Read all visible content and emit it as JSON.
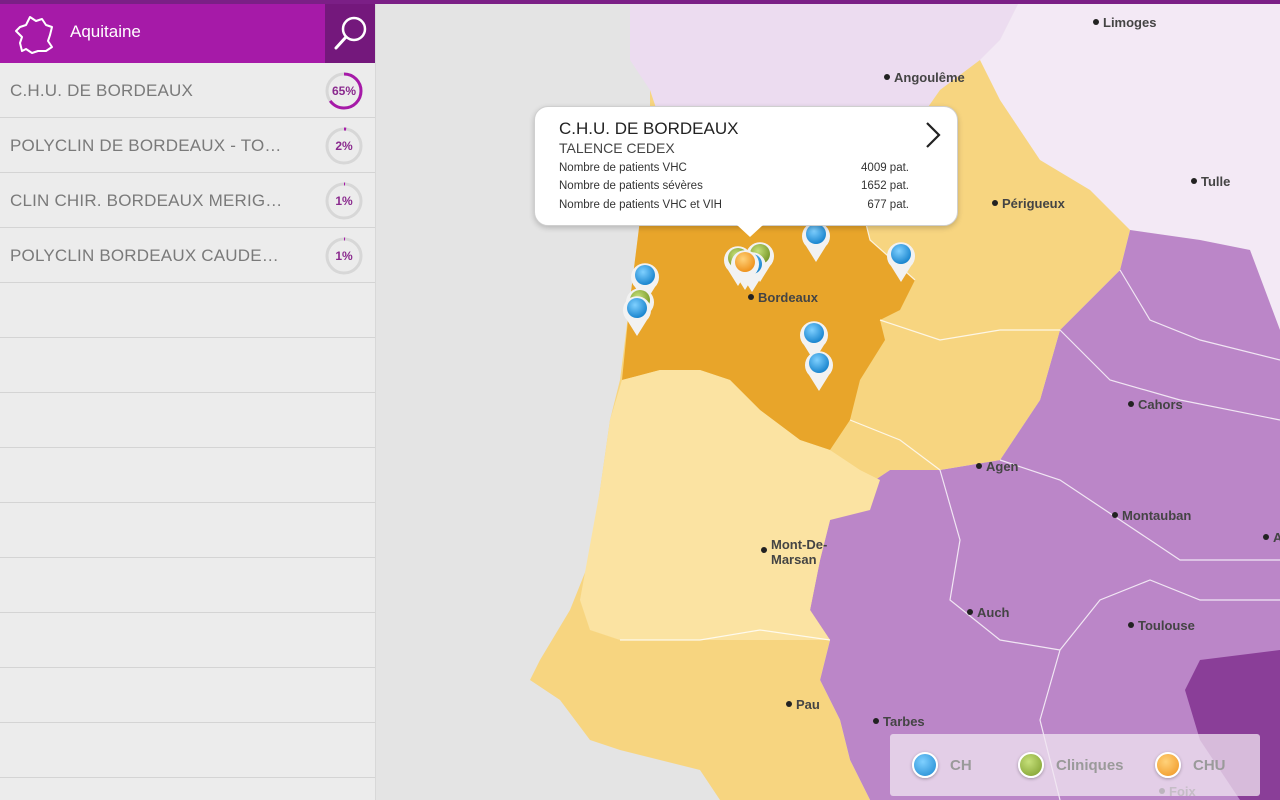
{
  "header": {
    "region": "Aquitaine"
  },
  "hospitals": [
    {
      "name": "C.H.U. DE BORDEAUX",
      "pct": "65%",
      "fraction": 0.65
    },
    {
      "name": "POLYCLIN DE BORDEAUX - TO…",
      "pct": "2%",
      "fraction": 0.02
    },
    {
      "name": "CLIN CHIR. BORDEAUX MERIG…",
      "pct": "1%",
      "fraction": 0.01
    },
    {
      "name": "POLYCLIN BORDEAUX CAUDE…",
      "pct": "1%",
      "fraction": 0.01
    }
  ],
  "popup": {
    "title": "C.H.U. DE BORDEAUX",
    "subtitle": "TALENCE CEDEX",
    "stats": [
      {
        "label": "Nombre de patients VHC",
        "value": "4009 pat."
      },
      {
        "label": "Nombre de patients sévères",
        "value": "1652 pat."
      },
      {
        "label": "Nombre de patients VHC et VIH",
        "value": "677 pat."
      }
    ]
  },
  "cities": [
    "Limoges",
    "Angoulême",
    "Tulle",
    "Périgueux",
    "Bordeaux",
    "Cahors",
    "Agen",
    "Montauban",
    "Mont-De-",
    "Marsan",
    "Auch",
    "Toulouse",
    "Pau",
    "Tarbes",
    "Foix",
    "A"
  ],
  "legend": [
    {
      "label": "CH",
      "color": "#2e9be0"
    },
    {
      "label": "Cliniques",
      "color": "#8fae3a"
    },
    {
      "label": "CHU",
      "color": "#f2a03a"
    }
  ],
  "colors": {
    "accent": "#a61aa8",
    "accent_dark": "#74187c",
    "ring": "#a61aa8"
  }
}
